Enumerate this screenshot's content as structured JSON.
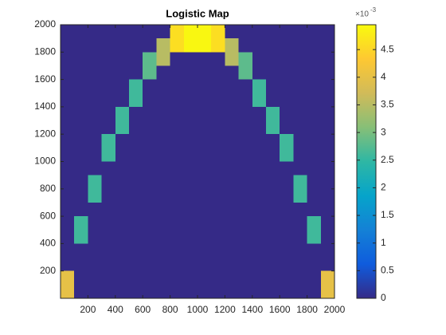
{
  "chart_data": {
    "type": "heatmap",
    "title": "Logistic Map",
    "x": [
      50,
      150,
      250,
      350,
      450,
      550,
      650,
      750,
      850,
      950,
      1050,
      1150,
      1250,
      1350,
      1450,
      1550,
      1650,
      1750,
      1850,
      1950
    ],
    "y": [
      1950,
      1850,
      1750,
      1650,
      1550,
      1450,
      1350,
      1250,
      1150,
      1050,
      950,
      850,
      750,
      650,
      550,
      450,
      350,
      250,
      150,
      50
    ],
    "z": [
      [
        0,
        0,
        0,
        0,
        0,
        0,
        0,
        0,
        4.6,
        4.9,
        4.9,
        4.6,
        0,
        0,
        0,
        0,
        0,
        0,
        0,
        0
      ],
      [
        0,
        0,
        0,
        0,
        0,
        0,
        0,
        3.5,
        4.6,
        4.9,
        4.9,
        4.6,
        3.5,
        0,
        0,
        0,
        0,
        0,
        0,
        0
      ],
      [
        0,
        0,
        0,
        0,
        0,
        0,
        2.8,
        3.5,
        0,
        0,
        0,
        0,
        3.5,
        2.8,
        0,
        0,
        0,
        0,
        0,
        0
      ],
      [
        0,
        0,
        0,
        0,
        0,
        0,
        2.8,
        0,
        0,
        0,
        0,
        0,
        0,
        2.8,
        0,
        0,
        0,
        0,
        0,
        0
      ],
      [
        0,
        0,
        0,
        0,
        0,
        2.6,
        0,
        0,
        0,
        0,
        0,
        0,
        0,
        0,
        2.6,
        0,
        0,
        0,
        0,
        0
      ],
      [
        0,
        0,
        0,
        0,
        0,
        2.6,
        0,
        0,
        0,
        0,
        0,
        0,
        0,
        0,
        2.6,
        0,
        0,
        0,
        0,
        0
      ],
      [
        0,
        0,
        0,
        0,
        2.6,
        0,
        0,
        0,
        0,
        0,
        0,
        0,
        0,
        0,
        0,
        2.6,
        0,
        0,
        0,
        0
      ],
      [
        0,
        0,
        0,
        0,
        2.6,
        0,
        0,
        0,
        0,
        0,
        0,
        0,
        0,
        0,
        0,
        2.6,
        0,
        0,
        0,
        0
      ],
      [
        0,
        0,
        0,
        2.6,
        0,
        0,
        0,
        0,
        0,
        0,
        0,
        0,
        0,
        0,
        0,
        0,
        2.6,
        0,
        0,
        0
      ],
      [
        0,
        0,
        0,
        2.6,
        0,
        0,
        0,
        0,
        0,
        0,
        0,
        0,
        0,
        0,
        0,
        0,
        2.6,
        0,
        0,
        0
      ],
      [
        0,
        0,
        0,
        0,
        0,
        0,
        0,
        0,
        0,
        0,
        0,
        0,
        0,
        0,
        0,
        0,
        0,
        0,
        0,
        0
      ],
      [
        0,
        0,
        2.6,
        0,
        0,
        0,
        0,
        0,
        0,
        0,
        0,
        0,
        0,
        0,
        0,
        0,
        0,
        2.6,
        0,
        0
      ],
      [
        0,
        0,
        2.6,
        0,
        0,
        0,
        0,
        0,
        0,
        0,
        0,
        0,
        0,
        0,
        0,
        0,
        0,
        2.6,
        0,
        0
      ],
      [
        0,
        0,
        0,
        0,
        0,
        0,
        0,
        0,
        0,
        0,
        0,
        0,
        0,
        0,
        0,
        0,
        0,
        0,
        0,
        0
      ],
      [
        0,
        2.6,
        0,
        0,
        0,
        0,
        0,
        0,
        0,
        0,
        0,
        0,
        0,
        0,
        0,
        0,
        0,
        0,
        2.6,
        0
      ],
      [
        0,
        2.6,
        0,
        0,
        0,
        0,
        0,
        0,
        0,
        0,
        0,
        0,
        0,
        0,
        0,
        0,
        0,
        0,
        2.6,
        0
      ],
      [
        0,
        0,
        0,
        0,
        0,
        0,
        0,
        0,
        0,
        0,
        0,
        0,
        0,
        0,
        0,
        0,
        0,
        0,
        0,
        0
      ],
      [
        0,
        0,
        0,
        0,
        0,
        0,
        0,
        0,
        0,
        0,
        0,
        0,
        0,
        0,
        0,
        0,
        0,
        0,
        0,
        0
      ],
      [
        4.0,
        0,
        0,
        0,
        0,
        0,
        0,
        0,
        0,
        0,
        0,
        0,
        0,
        0,
        0,
        0,
        0,
        0,
        0,
        4.0
      ],
      [
        4.0,
        0,
        0,
        0,
        0,
        0,
        0,
        0,
        0,
        0,
        0,
        0,
        0,
        0,
        0,
        0,
        0,
        0,
        0,
        4.0
      ]
    ],
    "xlim": [
      0,
      2000
    ],
    "xticks": [
      200,
      400,
      600,
      800,
      1000,
      1200,
      1400,
      1600,
      1800,
      2000
    ],
    "ylim": [
      0,
      2000
    ],
    "yticks": [
      200,
      400,
      600,
      800,
      1000,
      1200,
      1400,
      1600,
      1800,
      2000
    ],
    "colorbar": {
      "lim": [
        0,
        4.95
      ],
      "ticks": [
        0,
        0.5,
        1,
        1.5,
        2,
        2.5,
        3,
        3.5,
        4,
        4.5
      ],
      "multiplier": "×10",
      "exponent": -3
    }
  }
}
